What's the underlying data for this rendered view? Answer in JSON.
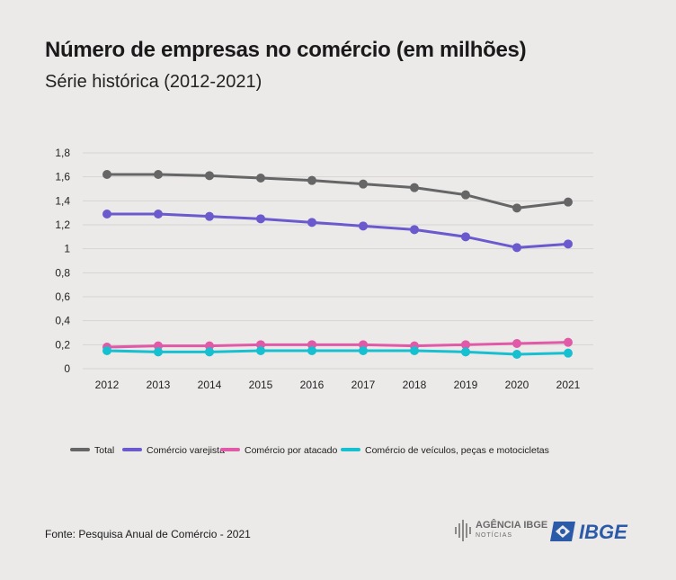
{
  "header": {
    "title": "Número de empresas no comércio (em milhões)",
    "subtitle": "Série histórica (2012-2021)"
  },
  "footer": {
    "source": "Fonte: Pesquisa Anual de Comércio - 2021",
    "agencia_logo": "AGÊNCIA IBGE",
    "agencia_sub": "NOTÍCIAS",
    "ibge_logo": "IBGE"
  },
  "colors": {
    "background": "#eceae9",
    "grid": "#d6d4d3",
    "Total": "#666666",
    "varejista": "#6a5acd",
    "atacado": "#e05aa8",
    "veiculos": "#17c0d1"
  },
  "chart_data": {
    "type": "line",
    "title": "Número de empresas no comércio (em milhões)",
    "subtitle": "Série histórica (2012-2021)",
    "xlabel": "",
    "ylabel": "",
    "x": [
      "2012",
      "2013",
      "2014",
      "2015",
      "2016",
      "2017",
      "2018",
      "2019",
      "2020",
      "2021"
    ],
    "ylim": [
      0,
      1.8
    ],
    "yticks": [
      "0",
      "0,2",
      "0,4",
      "0,6",
      "0,8",
      "1",
      "1,2",
      "1,4",
      "1,6",
      "1,8"
    ],
    "grid": true,
    "legend_position": "bottom",
    "series": [
      {
        "name": "Total",
        "color": "#666666",
        "values": [
          1.62,
          1.62,
          1.61,
          1.59,
          1.57,
          1.54,
          1.51,
          1.45,
          1.34,
          1.39
        ]
      },
      {
        "name": "Comércio varejista",
        "color": "#6a5acd",
        "values": [
          1.29,
          1.29,
          1.27,
          1.25,
          1.22,
          1.19,
          1.16,
          1.1,
          1.01,
          1.04
        ]
      },
      {
        "name": "Comércio por atacado",
        "color": "#e05aa8",
        "values": [
          0.18,
          0.19,
          0.19,
          0.2,
          0.2,
          0.2,
          0.19,
          0.2,
          0.21,
          0.22
        ]
      },
      {
        "name": "Comércio de veículos, peças e motocicletas",
        "color": "#17c0d1",
        "values": [
          0.15,
          0.14,
          0.14,
          0.15,
          0.15,
          0.15,
          0.15,
          0.14,
          0.12,
          0.13
        ]
      }
    ]
  }
}
